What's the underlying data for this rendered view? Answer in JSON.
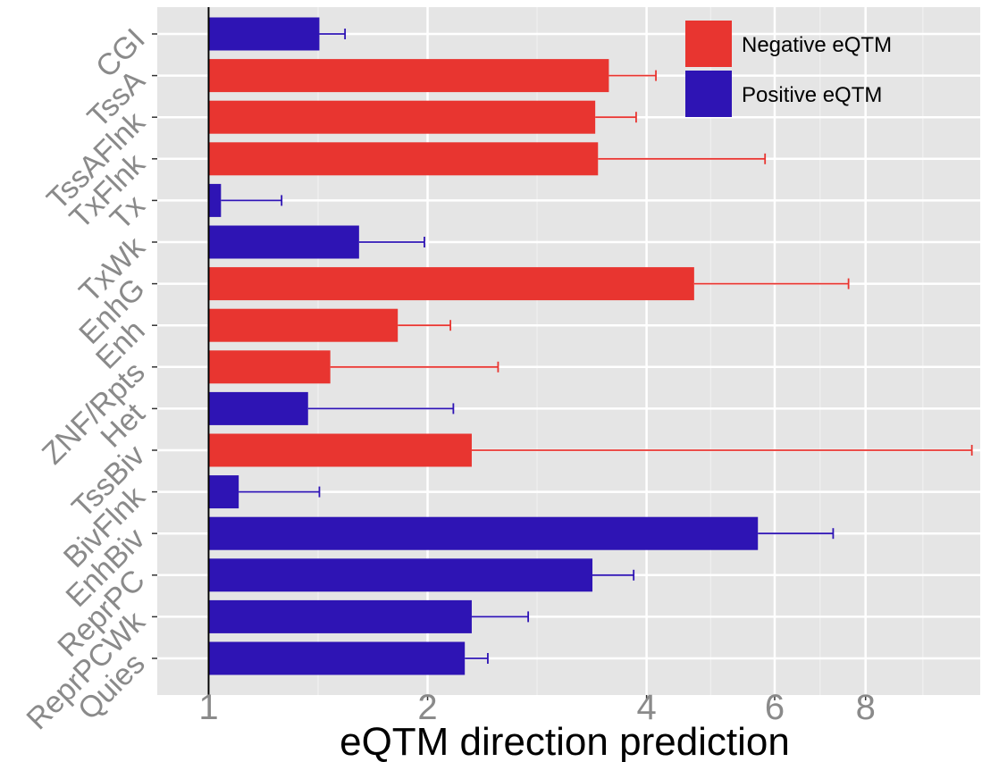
{
  "chart_data": {
    "type": "bar",
    "orientation": "horizontal",
    "xlabel": "eQTM direction prediction",
    "ylabel": "",
    "x_scale": "log",
    "xlim": [
      0.85,
      11.5
    ],
    "x_ticks": [
      1,
      2,
      4,
      6,
      8
    ],
    "x_tick_labels": [
      "1",
      "2",
      "4",
      "6",
      "8"
    ],
    "baseline": 1,
    "grid": true,
    "legend_position": "top-right",
    "legend": [
      {
        "label": "Negative eQTM",
        "color": "#e83530"
      },
      {
        "label": "Positive eQTM",
        "color": "#2e14b4"
      }
    ],
    "categories": [
      "CGI",
      "TssA",
      "TssAFlnk",
      "TxFlnk",
      "Tx",
      "TxWk",
      "EnhG",
      "Enh",
      "ZNF/Rpts",
      "Het",
      "TssBiv",
      "BivFlnk",
      "EnhBiv",
      "ReprPC",
      "ReprPCWk",
      "Quies"
    ],
    "values": [
      1.42,
      3.55,
      3.4,
      3.43,
      1.04,
      1.61,
      4.65,
      1.82,
      1.47,
      1.37,
      2.3,
      1.1,
      5.69,
      3.37,
      2.3,
      2.25
    ],
    "error_upper": [
      1.54,
      4.12,
      3.87,
      5.82,
      1.26,
      1.98,
      7.58,
      2.15,
      2.5,
      2.17,
      11.2,
      1.42,
      7.22,
      3.84,
      2.75,
      2.42
    ],
    "direction": [
      "positive",
      "negative",
      "negative",
      "negative",
      "positive",
      "positive",
      "negative",
      "negative",
      "negative",
      "positive",
      "negative",
      "positive",
      "positive",
      "positive",
      "positive",
      "positive"
    ]
  }
}
